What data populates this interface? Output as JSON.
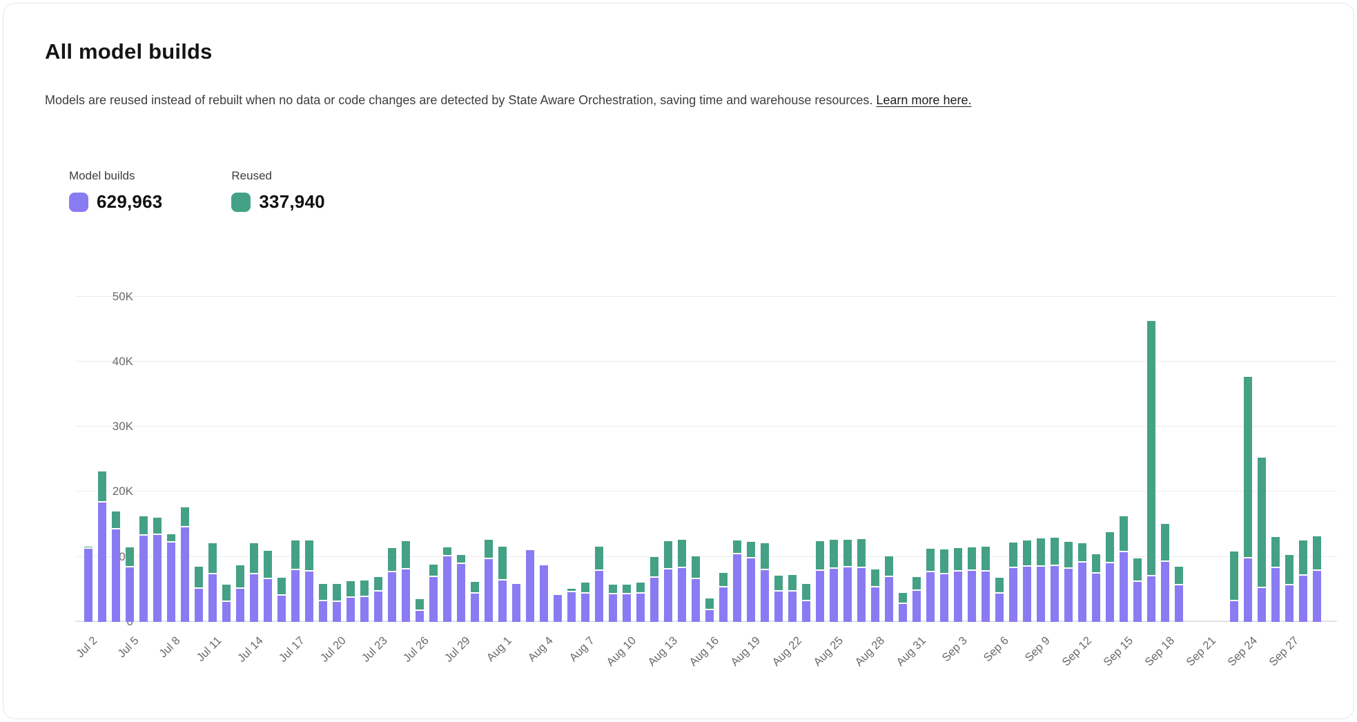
{
  "card": {
    "title": "All model builds",
    "description": "Models are reused instead of rebuilt when no data or code changes are detected by State Aware Orchestration, saving time and warehouse resources.",
    "link_text": "Learn more here."
  },
  "legend": [
    {
      "label": "Model builds",
      "value": "629,963",
      "color": "#8a7bf3"
    },
    {
      "label": "Reused",
      "value": "337,940",
      "color": "#44a185"
    }
  ],
  "chart_data": {
    "type": "bar",
    "stacked": true,
    "title": "All model builds",
    "xlabel": "",
    "ylabel": "",
    "ylim": [
      0,
      50000
    ],
    "y_ticks": [
      "0",
      "10K",
      "20K",
      "30K",
      "40K",
      "50K"
    ],
    "grid": "horizontal",
    "legend_position": "top-left",
    "x_tick_every": 3,
    "note_gap_days": [
      "Sep 20",
      "Sep 21",
      "Sep 22"
    ],
    "x": [
      "Jul 2",
      "Jul 3",
      "Jul 4",
      "Jul 5",
      "Jul 6",
      "Jul 7",
      "Jul 8",
      "Jul 9",
      "Jul 10",
      "Jul 11",
      "Jul 12",
      "Jul 13",
      "Jul 14",
      "Jul 15",
      "Jul 16",
      "Jul 17",
      "Jul 18",
      "Jul 19",
      "Jul 20",
      "Jul 21",
      "Jul 22",
      "Jul 23",
      "Jul 24",
      "Jul 25",
      "Jul 26",
      "Jul 27",
      "Jul 28",
      "Jul 29",
      "Jul 30",
      "Jul 31",
      "Aug 1",
      "Aug 2",
      "Aug 3",
      "Aug 4",
      "Aug 5",
      "Aug 6",
      "Aug 7",
      "Aug 8",
      "Aug 9",
      "Aug 10",
      "Aug 11",
      "Aug 12",
      "Aug 13",
      "Aug 14",
      "Aug 15",
      "Aug 16",
      "Aug 17",
      "Aug 18",
      "Aug 19",
      "Aug 20",
      "Aug 21",
      "Aug 22",
      "Aug 23",
      "Aug 24",
      "Aug 25",
      "Aug 26",
      "Aug 27",
      "Aug 28",
      "Aug 29",
      "Aug 30",
      "Aug 31",
      "Sep 1",
      "Sep 2",
      "Sep 3",
      "Sep 4",
      "Sep 5",
      "Sep 6",
      "Sep 7",
      "Sep 8",
      "Sep 9",
      "Sep 10",
      "Sep 11",
      "Sep 12",
      "Sep 13",
      "Sep 14",
      "Sep 15",
      "Sep 16",
      "Sep 17",
      "Sep 18",
      "Sep 19",
      "Sep 20",
      "Sep 21",
      "Sep 22",
      "Sep 23",
      "Sep 24",
      "Sep 25",
      "Sep 26",
      "Sep 27",
      "Sep 28",
      "Sep 29"
    ],
    "series": [
      {
        "name": "Model builds",
        "color": "#8a7bf3",
        "values": [
          11200,
          18400,
          14200,
          8400,
          13300,
          13400,
          12200,
          14500,
          5100,
          7300,
          3100,
          5100,
          7300,
          6600,
          4000,
          8000,
          7700,
          3200,
          3100,
          3700,
          3800,
          4700,
          7600,
          8100,
          1700,
          6900,
          10100,
          8900,
          4300,
          9700,
          6400,
          5800,
          11000,
          8700,
          4100,
          4600,
          4300,
          7900,
          4200,
          4200,
          4300,
          6800,
          8100,
          8300,
          6600,
          1800,
          5300,
          10400,
          9800,
          8000,
          4700,
          4700,
          3200,
          7800,
          8200,
          8400,
          8300,
          5300,
          6900,
          2800,
          4800,
          7600,
          7300,
          7700,
          7900,
          7700,
          4300,
          8300,
          8500,
          8500,
          8600,
          8200,
          9100,
          7400,
          9000,
          10700,
          6200,
          7000,
          9200,
          5600,
          0,
          0,
          0,
          3200,
          9800,
          5200,
          8300,
          5600,
          7100,
          7900
        ]
      },
      {
        "name": "Reused",
        "color": "#44a185",
        "values": [
          200,
          4500,
          2600,
          2800,
          2700,
          2400,
          1100,
          2900,
          3200,
          4600,
          2400,
          3400,
          4600,
          4100,
          2600,
          4300,
          4600,
          2400,
          2500,
          2300,
          2300,
          2000,
          3500,
          4100,
          1600,
          1700,
          1100,
          1200,
          1600,
          2700,
          5000,
          0,
          0,
          0,
          0,
          300,
          1500,
          3400,
          1300,
          1300,
          1500,
          3000,
          4100,
          4100,
          3300,
          1600,
          2000,
          1900,
          2300,
          3900,
          2200,
          2300,
          2400,
          4400,
          4200,
          4000,
          4200,
          2500,
          3000,
          1400,
          1900,
          3400,
          3600,
          3400,
          3300,
          3700,
          2300,
          3700,
          3800,
          4100,
          4100,
          3900,
          2800,
          2800,
          4600,
          5300,
          3400,
          39000,
          5700,
          2700,
          0,
          0,
          0,
          7400,
          27600,
          19800,
          4500,
          4500,
          5200,
          5000
        ]
      }
    ]
  }
}
